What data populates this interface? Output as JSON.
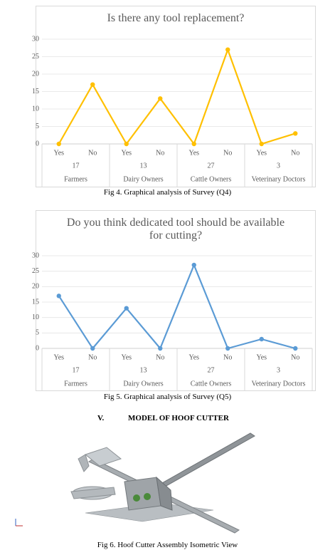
{
  "chart_data": [
    {
      "type": "line",
      "title": "Is there any tool replacement?",
      "categories": [
        "Yes",
        "No",
        "Yes",
        "No",
        "Yes",
        "No",
        "Yes",
        "No"
      ],
      "groups": [
        {
          "count": 17,
          "name": "Farmers"
        },
        {
          "count": 13,
          "name": "Dairy Owners"
        },
        {
          "count": 27,
          "name": "Cattle Owners"
        },
        {
          "count": 3,
          "name": "Veterinary Doctors"
        }
      ],
      "values": [
        0,
        17,
        0,
        13,
        0,
        27,
        0,
        3
      ],
      "color": "#ffc000",
      "ylim": [
        0,
        30
      ],
      "yticks": [
        0,
        5,
        10,
        15,
        20,
        25,
        30
      ],
      "grid": true
    },
    {
      "type": "line",
      "title": "Do you think dedicated tool should be available for cutting?",
      "categories": [
        "Yes",
        "No",
        "Yes",
        "No",
        "Yes",
        "No",
        "Yes",
        "No"
      ],
      "groups": [
        {
          "count": 17,
          "name": "Farmers"
        },
        {
          "count": 13,
          "name": "Dairy Owners"
        },
        {
          "count": 27,
          "name": "Cattle Owners"
        },
        {
          "count": 3,
          "name": "Veterinary Doctors"
        }
      ],
      "values": [
        17,
        0,
        13,
        0,
        27,
        0,
        3,
        0
      ],
      "color": "#5b9bd5",
      "ylim": [
        0,
        30
      ],
      "yticks": [
        0,
        5,
        10,
        15,
        20,
        25,
        30
      ],
      "grid": true
    }
  ],
  "captions": [
    "Fig 4. Graphical analysis of Survey (Q4)",
    "Fig 5. Graphical analysis of Survey (Q5)",
    "Fig 6. Hoof Cutter Assembly Isometric View"
  ],
  "section": {
    "number": "V.",
    "title": "MODEL OF HOOF CUTTER"
  }
}
